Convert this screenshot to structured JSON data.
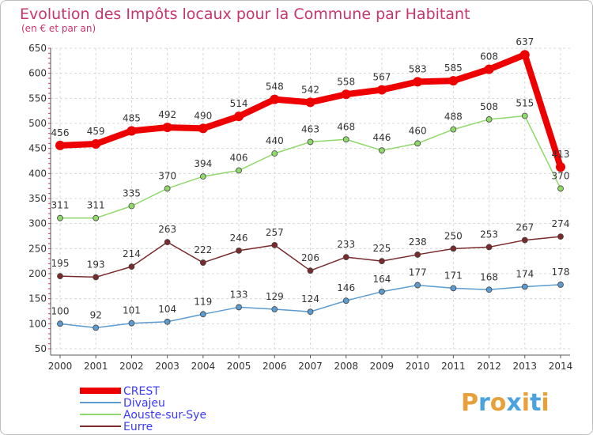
{
  "chart_data": {
    "type": "line",
    "title": "Evolution des Impôts locaux pour la Commune par Habitant",
    "subtitle": "(en € et par an)",
    "xlabel": "",
    "ylabel": "",
    "x": [
      "2000",
      "2001",
      "2002",
      "2003",
      "2004",
      "2005",
      "2006",
      "2007",
      "2008",
      "2009",
      "2010",
      "2011",
      "2012",
      "2013",
      "2014"
    ],
    "yticks": [
      50,
      100,
      150,
      200,
      250,
      300,
      350,
      400,
      450,
      500,
      550,
      600,
      650
    ],
    "ylim": [
      50,
      650
    ],
    "grid": true,
    "legend": "bottom-left",
    "series": [
      {
        "name": "CREST",
        "color": "#ee0000",
        "values": [
          456,
          459,
          485,
          492,
          490,
          514,
          548,
          542,
          558,
          567,
          583,
          585,
          608,
          637,
          413
        ]
      },
      {
        "name": "Divajeu",
        "color": "#5b9bd0",
        "values": [
          100,
          92,
          101,
          104,
          119,
          133,
          129,
          124,
          146,
          164,
          177,
          171,
          168,
          174,
          178
        ]
      },
      {
        "name": "Aouste-sur-Sye",
        "color": "#8fd86a",
        "values": [
          311,
          311,
          335,
          370,
          394,
          406,
          440,
          463,
          468,
          446,
          460,
          488,
          508,
          515,
          370
        ]
      },
      {
        "name": "Eurre",
        "color": "#7a2a2a",
        "values": [
          195,
          193,
          214,
          263,
          222,
          246,
          257,
          206,
          233,
          225,
          238,
          250,
          253,
          267,
          274
        ]
      }
    ]
  },
  "branding": {
    "logo_letters": [
      "P",
      "r",
      "o",
      "x",
      "i",
      "t",
      "i"
    ],
    "logo_colors": [
      "#e8a13a",
      "#4aa3df",
      "#e8a13a",
      "#4aa3df",
      "#e8a13a",
      "#4aa3df",
      "#e8a13a"
    ]
  }
}
